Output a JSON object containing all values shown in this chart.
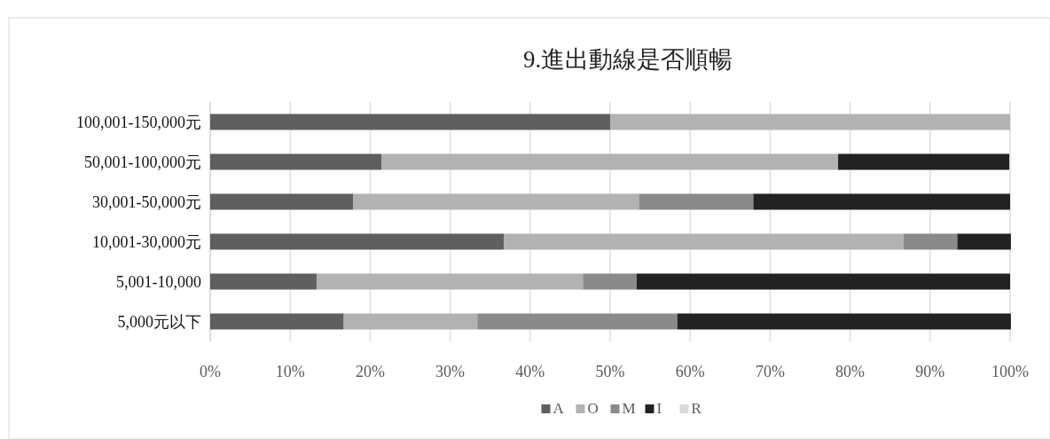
{
  "chart_data": {
    "type": "bar",
    "orientation": "horizontal",
    "stacked": true,
    "title": "9.進出動線是否順暢",
    "categories": [
      "100,001-150,000元",
      "50,001-100,000元",
      "30,001-50,000元",
      "10,001-30,000元",
      "5,001-10,000",
      "5,000元以下"
    ],
    "series": [
      {
        "name": "A",
        "color": "#5f5f5f",
        "values": [
          50,
          21.4,
          17.9,
          36.7,
          13.3,
          16.7
        ]
      },
      {
        "name": "O",
        "color": "#b2b2b2",
        "values": [
          50,
          57.1,
          35.7,
          50,
          33.3,
          16.7
        ]
      },
      {
        "name": "M",
        "color": "#8a8a8a",
        "values": [
          0,
          0,
          14.3,
          6.7,
          6.7,
          25
        ]
      },
      {
        "name": "I",
        "color": "#222222",
        "values": [
          0,
          21.4,
          32.1,
          6.7,
          46.7,
          41.7
        ]
      },
      {
        "name": "R",
        "color": "#d9d9d9",
        "values": [
          0,
          0,
          0,
          0,
          0,
          0
        ]
      }
    ],
    "xlim": [
      0,
      100
    ],
    "xticks": [
      {
        "value": 0,
        "label": "0%"
      },
      {
        "value": 10,
        "label": "10%"
      },
      {
        "value": 20,
        "label": "20%"
      },
      {
        "value": 30,
        "label": "30%"
      },
      {
        "value": 40,
        "label": "40%"
      },
      {
        "value": 50,
        "label": "50%"
      },
      {
        "value": 60,
        "label": "60%"
      },
      {
        "value": 70,
        "label": "70%"
      },
      {
        "value": 80,
        "label": "80%"
      },
      {
        "value": 90,
        "label": "90%"
      },
      {
        "value": 100,
        "label": "100%"
      }
    ],
    "grid": "x",
    "legend": "bottom"
  }
}
